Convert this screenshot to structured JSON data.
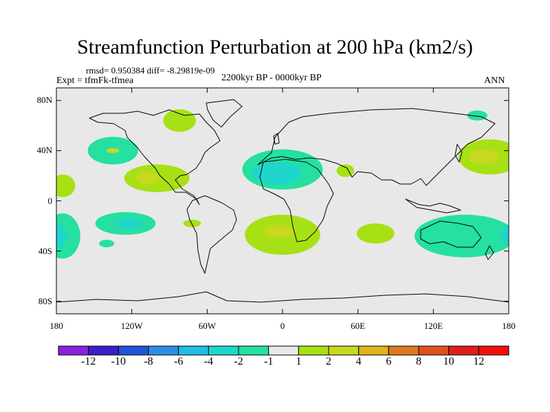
{
  "title": "Streamfunction Perturbation at 200 hPa (km2/s)",
  "stats": "rmsd= 0.950384 diff= -8.29819e-09",
  "experiment": "Expt = tfmFk-tfmea",
  "subtitle": "2200kyr BP - 0000kyr BP",
  "season": "ANN",
  "map": {
    "projection": "cylindrical equidistant",
    "lon_range": [
      -180,
      180
    ],
    "lat_range": [
      -90,
      90
    ],
    "lat_ticks": [
      {
        "value": 80,
        "label": "80N"
      },
      {
        "value": 40,
        "label": "40N"
      },
      {
        "value": 0,
        "label": "0"
      },
      {
        "value": -40,
        "label": "40S"
      },
      {
        "value": -80,
        "label": "80S"
      }
    ],
    "lon_ticks": [
      {
        "value": -180,
        "label": "180"
      },
      {
        "value": -120,
        "label": "120W"
      },
      {
        "value": -60,
        "label": "60W"
      },
      {
        "value": 0,
        "label": "0"
      },
      {
        "value": 60,
        "label": "60E"
      },
      {
        "value": 120,
        "label": "120E"
      },
      {
        "value": 180,
        "label": "180"
      }
    ],
    "background_color": "#e8e8e8"
  },
  "colorbar": {
    "labels": [
      "-12",
      "-10",
      "-8",
      "-6",
      "-4",
      "-2",
      "-1",
      "1",
      "2",
      "4",
      "6",
      "8",
      "10",
      "12"
    ],
    "colors": [
      "#8a20e0",
      "#3a1ec8",
      "#1f55d6",
      "#2d8ee6",
      "#22bde6",
      "#1fd6cc",
      "#25e0a0",
      "#e8e8e8",
      "#a8e016",
      "#c8d81e",
      "#e0b41e",
      "#e0781e",
      "#e0501e",
      "#e01e1e",
      "#f01010"
    ]
  },
  "anomalies": [
    {
      "name": "N Pacific negative",
      "lon": -135,
      "lat": 40,
      "rx": 20,
      "ry": 11,
      "color": "#25e0a0"
    },
    {
      "name": "N Pacific positive core",
      "lon": -135,
      "lat": 40,
      "rx": 5,
      "ry": 2,
      "color": "#c8d81e"
    },
    {
      "name": "Canada positive",
      "lon": -82,
      "lat": 64,
      "rx": 13,
      "ry": 9,
      "color": "#a8e016"
    },
    {
      "name": "Mexico positive",
      "lon": -100,
      "lat": 18,
      "rx": 26,
      "ry": 11,
      "color": "#a8e016"
    },
    {
      "name": "Mexico positive core",
      "lon": -108,
      "lat": 18,
      "rx": 9,
      "ry": 5,
      "color": "#c8d81e"
    },
    {
      "name": "Atlantic Africa negative",
      "lon": 0,
      "lat": 25,
      "rx": 32,
      "ry": 16,
      "color": "#25e0a0"
    },
    {
      "name": "Atlantic Africa negative core",
      "lon": -5,
      "lat": 22,
      "rx": 20,
      "ry": 9,
      "color": "#1fd6cc"
    },
    {
      "name": "South Atlantic positive",
      "lon": 0,
      "lat": -27,
      "rx": 30,
      "ry": 16,
      "color": "#a8e016"
    },
    {
      "name": "South Atlantic positive core",
      "lon": -3,
      "lat": -24,
      "rx": 12,
      "ry": 5,
      "color": "#c8d81e"
    },
    {
      "name": "Arabia positive",
      "lon": 50,
      "lat": 24,
      "rx": 7,
      "ry": 5,
      "color": "#a8e016"
    },
    {
      "name": "Indian Ocean positive",
      "lon": 74,
      "lat": -26,
      "rx": 15,
      "ry": 8,
      "color": "#a8e016"
    },
    {
      "name": "S Pacific negative",
      "lon": -125,
      "lat": -18,
      "rx": 24,
      "ry": 9,
      "color": "#25e0a0"
    },
    {
      "name": "S Pacific negative core",
      "lon": -122,
      "lat": -18,
      "rx": 11,
      "ry": 4,
      "color": "#1fd6cc"
    },
    {
      "name": "S Pacific small negative",
      "lon": -140,
      "lat": -34,
      "rx": 6,
      "ry": 3,
      "color": "#25e0a0"
    },
    {
      "name": "SE Pacific positive",
      "lon": -72,
      "lat": -18,
      "rx": 7,
      "ry": 3,
      "color": "#a8e016"
    },
    {
      "name": "Far west negative",
      "lon": -175,
      "lat": -28,
      "rx": 14,
      "ry": 18,
      "color": "#25e0a0"
    },
    {
      "name": "Far west negative core",
      "lon": -178,
      "lat": -28,
      "rx": 6,
      "ry": 9,
      "color": "#1fd6cc"
    },
    {
      "name": "Far west positive",
      "lon": -175,
      "lat": 12,
      "rx": 10,
      "ry": 9,
      "color": "#a8e016"
    },
    {
      "name": "Australia negative",
      "lon": 145,
      "lat": -28,
      "rx": 40,
      "ry": 17,
      "color": "#25e0a0"
    },
    {
      "name": "Australia negative core",
      "lon": 180,
      "lat": -27,
      "rx": 6,
      "ry": 8,
      "color": "#1fd6cc"
    },
    {
      "name": "Japan positive",
      "lon": 165,
      "lat": 35,
      "rx": 25,
      "ry": 14,
      "color": "#a8e016"
    },
    {
      "name": "Japan positive core",
      "lon": 160,
      "lat": 35,
      "rx": 12,
      "ry": 6,
      "color": "#c8d81e"
    },
    {
      "name": "Far east small negative",
      "lon": 155,
      "lat": 68,
      "rx": 8,
      "ry": 4,
      "color": "#25e0a0"
    }
  ]
}
